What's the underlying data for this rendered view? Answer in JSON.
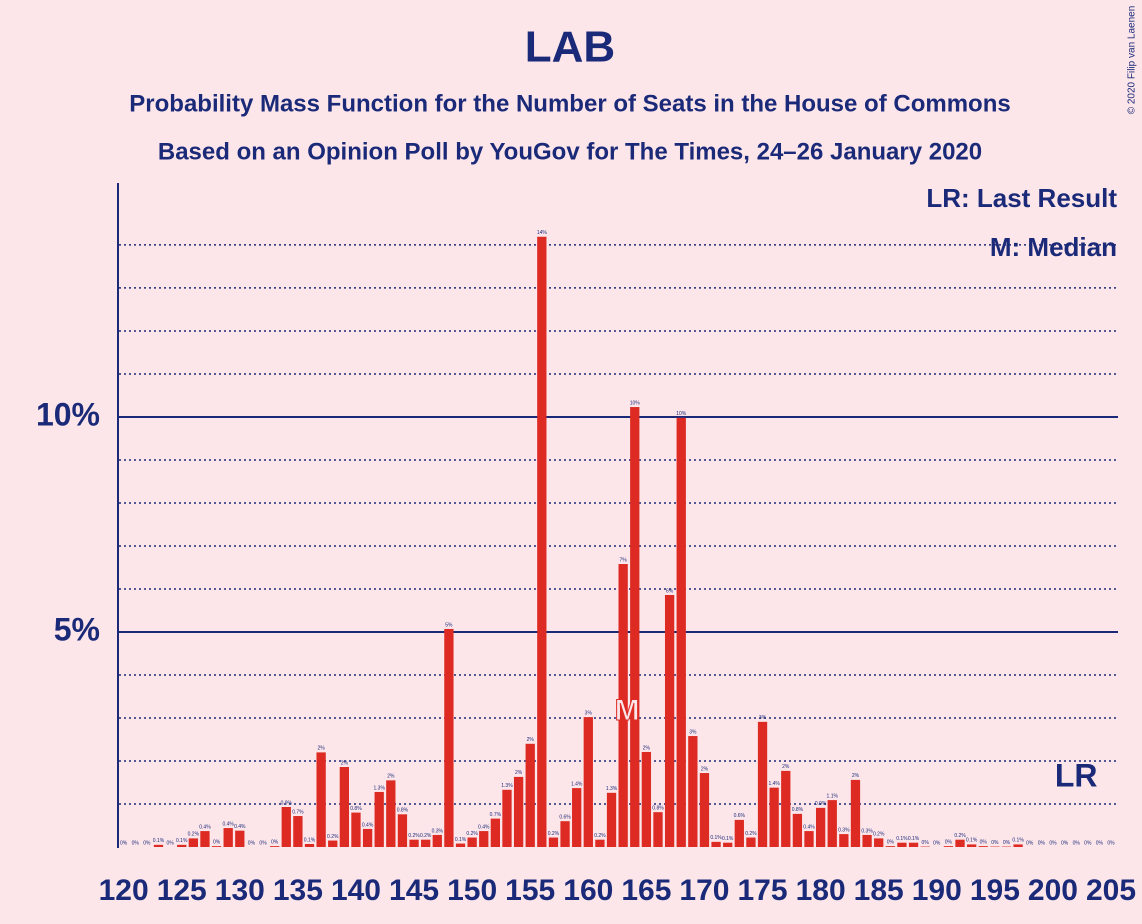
{
  "chart_data": {
    "type": "bar",
    "title": "LAB",
    "subtitle": "Probability Mass Function for the Number of Seats in the House of Commons",
    "subtitle2": "Based on an Opinion Poll by YouGov for The Times, 24–26 January 2020",
    "credit": "© 2020 Filip van Laenen",
    "legend": [
      "LR: Last Result",
      "M: Median"
    ],
    "x": [
      120,
      121,
      122,
      123,
      124,
      125,
      126,
      127,
      128,
      129,
      130,
      131,
      132,
      133,
      134,
      135,
      136,
      137,
      138,
      139,
      140,
      141,
      142,
      143,
      144,
      145,
      146,
      147,
      148,
      149,
      150,
      151,
      152,
      153,
      154,
      155,
      156,
      157,
      158,
      159,
      160,
      161,
      162,
      163,
      164,
      165,
      166,
      167,
      168,
      169,
      170,
      171,
      172,
      173,
      174,
      175,
      176,
      177,
      178,
      179,
      180,
      181,
      182,
      183,
      184,
      185,
      186,
      187,
      188,
      189,
      190,
      191,
      192,
      193,
      194,
      195,
      196,
      197,
      198,
      199,
      200,
      201,
      202,
      203,
      204,
      205
    ],
    "values": [
      0,
      0,
      0,
      0.05,
      0,
      0.05,
      0.2,
      0.37,
      0.02,
      0.44,
      0.38,
      0,
      0,
      0.02,
      0.93,
      0.72,
      0.07,
      2.2,
      0.15,
      1.86,
      0.8,
      0.42,
      1.28,
      1.55,
      0.76,
      0.17,
      0.17,
      0.28,
      5.07,
      0.08,
      0.22,
      0.37,
      0.66,
      1.33,
      1.63,
      2.4,
      14.19,
      0.22,
      0.6,
      1.37,
      3.02,
      0.17,
      1.26,
      6.58,
      10.23,
      2.21,
      0.81,
      5.86,
      9.98,
      2.58,
      1.72,
      0.12,
      0.1,
      0.63,
      0.22,
      2.91,
      1.38,
      1.77,
      0.77,
      0.37,
      0.91,
      1.09,
      0.3,
      1.56,
      0.28,
      0.2,
      0.02,
      0.1,
      0.1,
      0.01,
      0,
      0.02,
      0.17,
      0.06,
      0.02,
      0.01,
      0.01,
      0.06,
      0,
      0,
      0,
      0,
      0,
      0,
      0,
      0
    ],
    "value_labels": [
      "0%",
      "0%",
      "0%",
      "0.1%",
      "0%",
      "0.1%",
      "0.2%",
      "0.4%",
      "0%",
      "0.4%",
      "0.4%",
      "0%",
      "0%",
      "0%",
      "0.9%",
      "0.7%",
      "0.1%",
      "2%",
      "0.2%",
      "2%",
      "0.8%",
      "0.4%",
      "1.3%",
      "2%",
      "0.8%",
      "0.2%",
      "0.2%",
      "0.3%",
      "5%",
      "0.1%",
      "0.2%",
      "0.4%",
      "0.7%",
      "1.3%",
      "2%",
      "2%",
      "14%",
      "0.2%",
      "0.6%",
      "1.4%",
      "3%",
      "0.2%",
      "1.3%",
      "7%",
      "10%",
      "2%",
      "0.8%",
      "6%",
      "10%",
      "3%",
      "2%",
      "0.1%",
      "0.1%",
      "0.6%",
      "0.2%",
      "3%",
      "1.4%",
      "2%",
      "0.8%",
      "0.4%",
      "0.9%",
      "1.1%",
      "0.3%",
      "2%",
      "0.3%",
      "0.2%",
      "0%",
      "0.1%",
      "0.1%",
      "0%",
      "0%",
      "0%",
      "0.2%",
      "0.1%",
      "0%",
      "0%",
      "0%",
      "0.1%",
      "0%",
      "0%",
      "0%",
      "0%",
      "0%",
      "0%",
      "0%",
      "0%"
    ],
    "color": "#dd2a22",
    "xlim": [
      119.6,
      205.6
    ],
    "xticks": [
      120,
      125,
      130,
      135,
      140,
      145,
      150,
      155,
      160,
      165,
      170,
      175,
      180,
      185,
      190,
      195,
      200,
      205
    ],
    "ylim": [
      0,
      15.44
    ],
    "yticks": [
      {
        "value": 5,
        "label": "5%"
      },
      {
        "value": 10,
        "label": "10%"
      }
    ],
    "minor_grid": [
      1,
      2,
      3,
      4,
      6,
      7,
      8,
      9,
      11,
      12,
      13,
      14
    ],
    "median": {
      "x": 163,
      "label": "M"
    },
    "last_result": {
      "x": 202,
      "label": "LR"
    }
  }
}
